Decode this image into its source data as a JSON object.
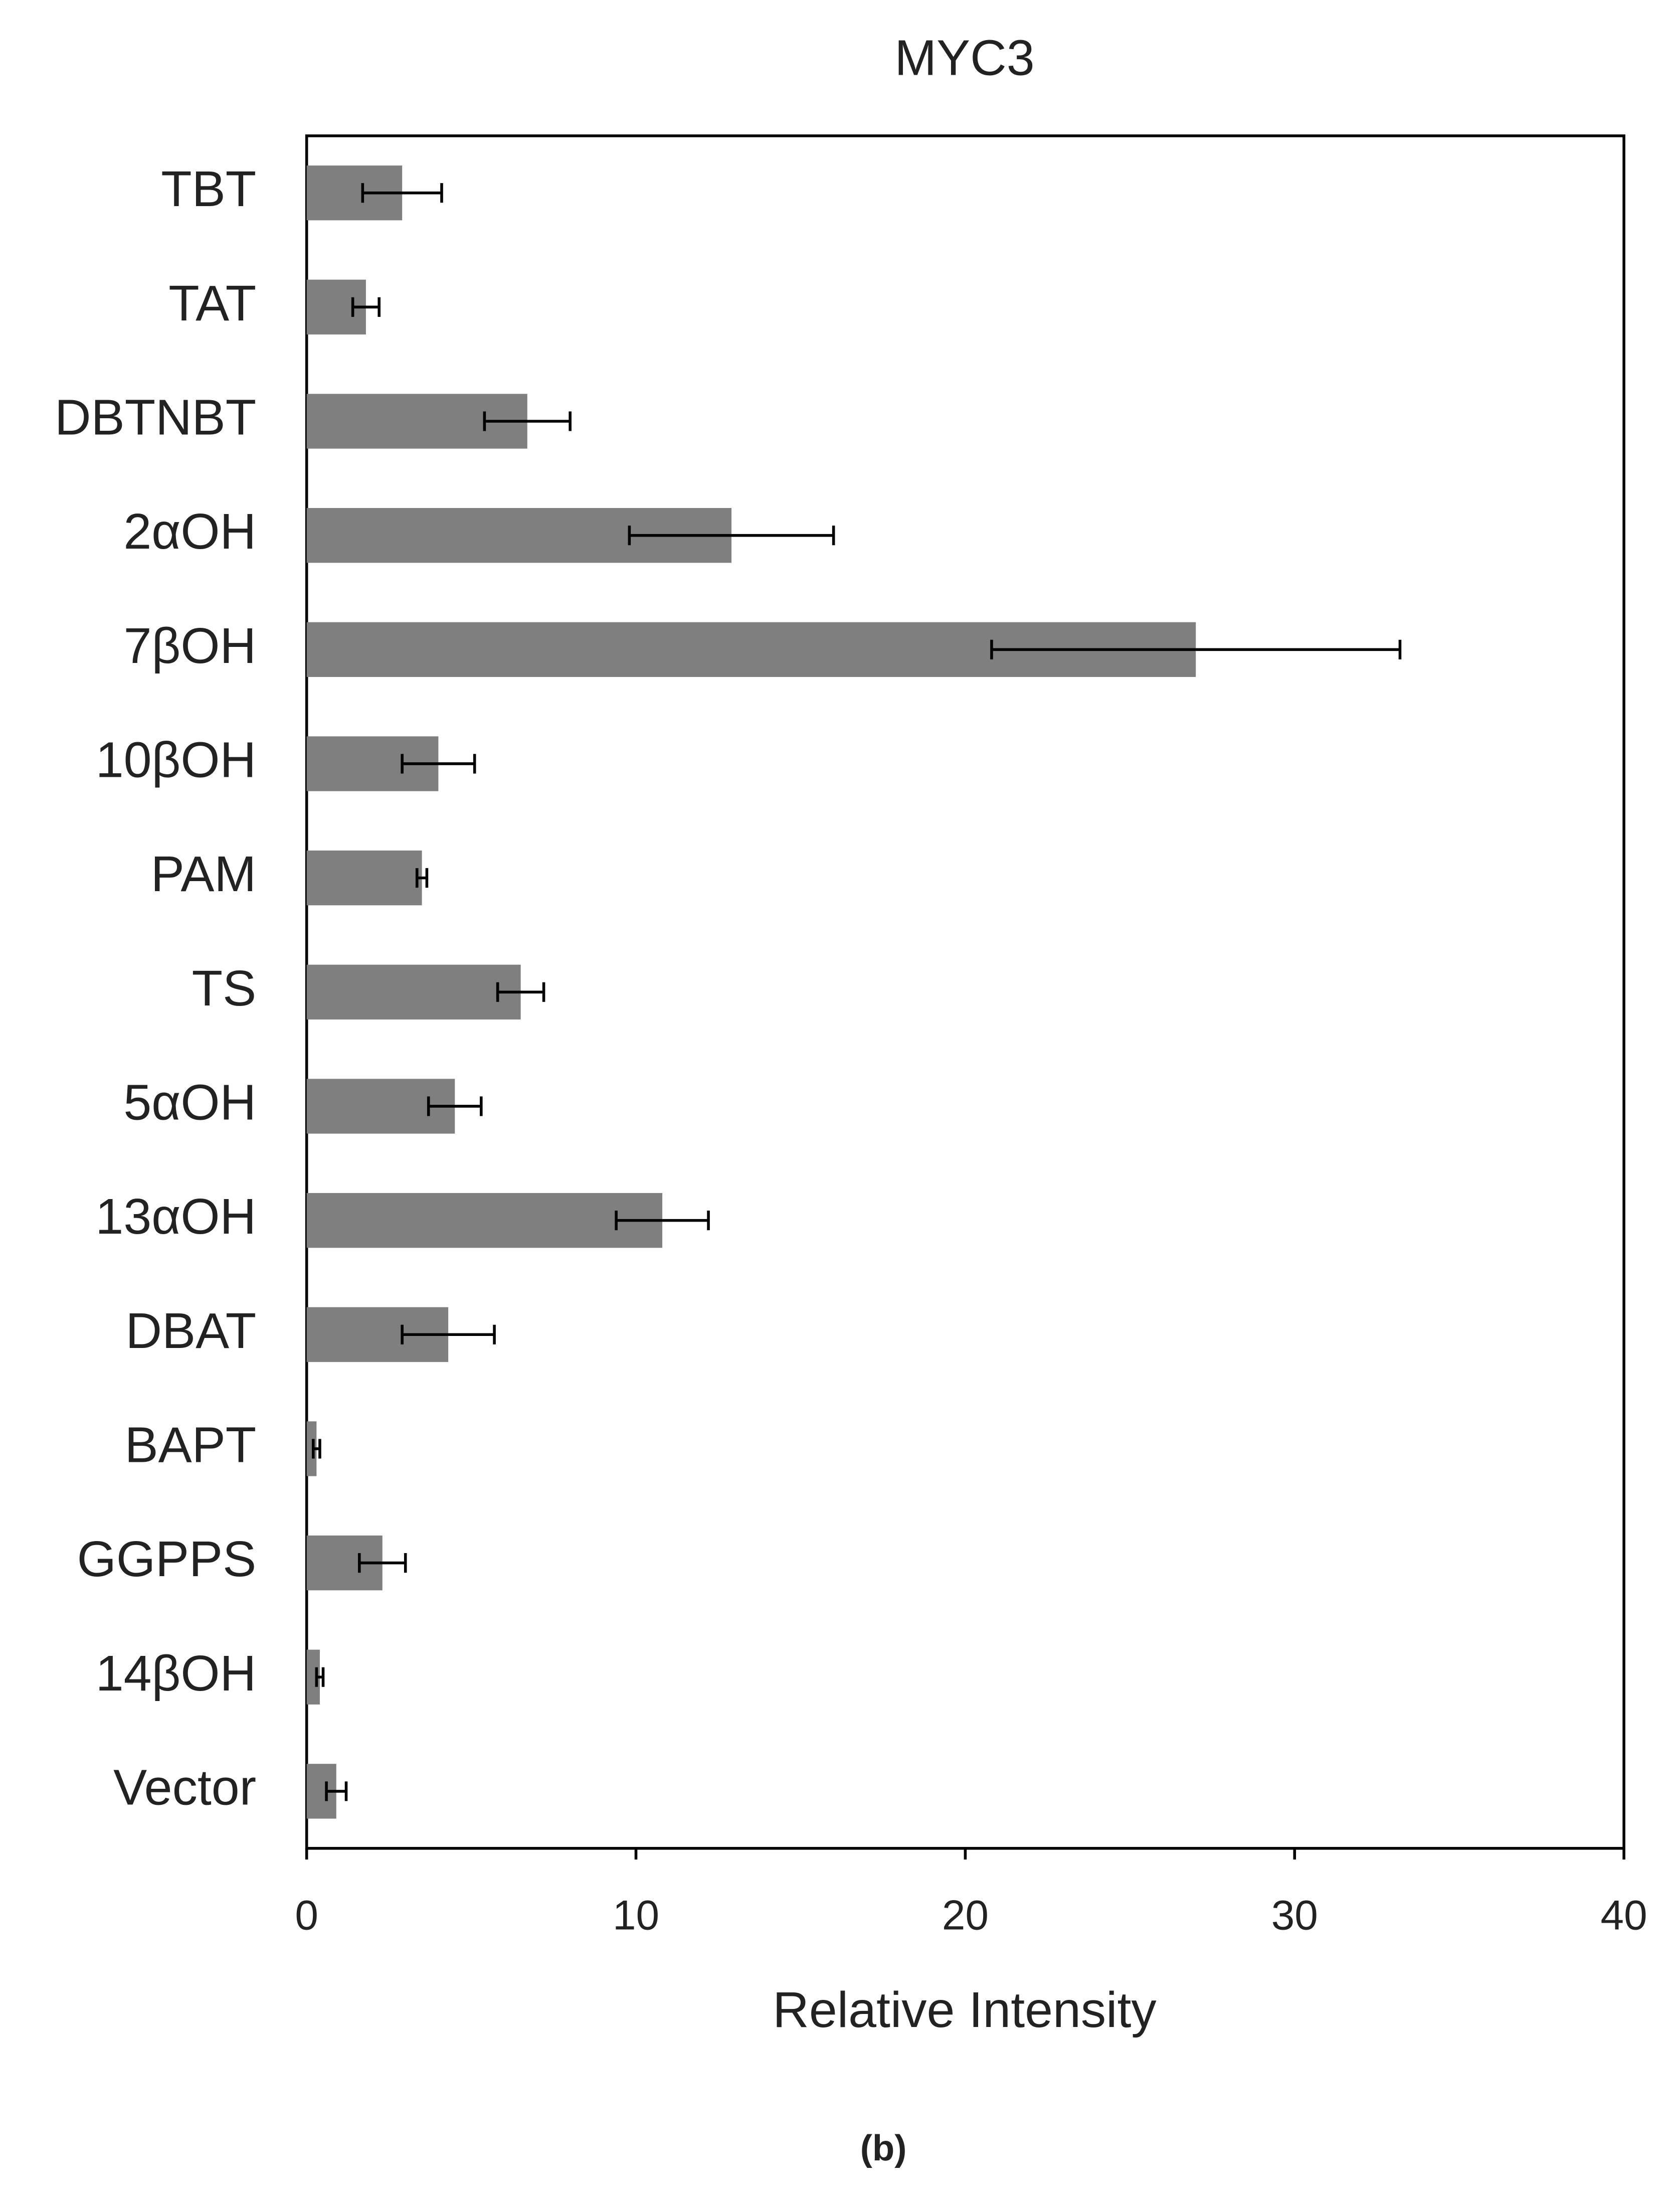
{
  "chart_data": {
    "type": "hbar",
    "title": "MYC3",
    "xlabel": "Relative Intensity",
    "caption": "(b)",
    "categories": [
      "TBT",
      "TAT",
      "DBTNBT",
      "2αOH",
      "7βOH",
      "10βOH",
      "PAM",
      "TS",
      "5αOH",
      "13αOH",
      "DBAT",
      "BAPT",
      "GGPPS",
      "14βOH",
      "Vector"
    ],
    "values": [
      2.9,
      1.8,
      6.7,
      12.9,
      27.0,
      4.0,
      3.5,
      6.5,
      4.5,
      10.8,
      4.3,
      0.3,
      2.3,
      0.4,
      0.9
    ],
    "errors": [
      1.2,
      0.4,
      1.3,
      3.1,
      6.2,
      1.1,
      0.15,
      0.7,
      0.8,
      1.4,
      1.4,
      0.1,
      0.7,
      0.1,
      0.3
    ],
    "color": "#7f7f7f",
    "xlim": [
      0,
      40
    ],
    "xticks": [
      0,
      10,
      20,
      30,
      40
    ],
    "grid": false
  }
}
